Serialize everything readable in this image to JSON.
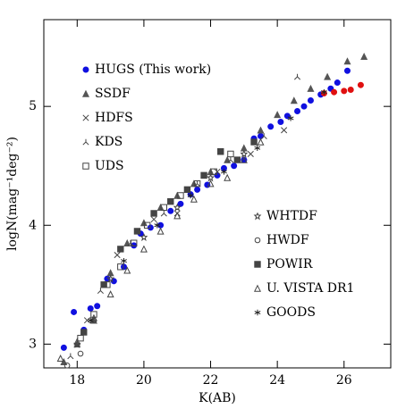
{
  "chart_data": {
    "type": "scatter",
    "x_label": "K(AB)",
    "y_label": "logN(mag⁻¹deg⁻²)",
    "xlim": [
      17,
      27.4
    ],
    "ylim": [
      2.8,
      5.73
    ],
    "xticks": [
      18,
      20,
      22,
      24,
      26
    ],
    "yticks": [
      3,
      4,
      5
    ],
    "series": [
      {
        "name": "HUGS (This work)",
        "color": "#1010e0",
        "marker": "circle",
        "x": [
          17.6,
          17.9,
          18.2,
          18.4,
          18.6,
          18.9,
          19.1,
          19.4,
          19.7,
          19.9,
          20.2,
          20.5,
          20.8,
          21.1,
          21.4,
          21.6,
          21.9,
          22.2,
          22.4,
          22.7,
          23.0,
          23.3,
          23.5,
          23.8,
          24.1,
          24.3,
          24.6,
          24.8,
          25.0,
          25.3,
          25.6,
          25.8,
          26.1
        ],
        "values": [
          2.97,
          3.27,
          3.12,
          3.3,
          3.32,
          3.55,
          3.53,
          3.65,
          3.83,
          3.93,
          3.98,
          4.0,
          4.12,
          4.18,
          4.26,
          4.3,
          4.34,
          4.42,
          4.48,
          4.5,
          4.55,
          4.73,
          4.75,
          4.83,
          4.87,
          4.92,
          4.96,
          5.0,
          5.05,
          5.1,
          5.15,
          5.2,
          5.3
        ]
      },
      {
        "color": "#e01010",
        "marker": "circle",
        "x": [
          25.4,
          25.7,
          26.0,
          26.2,
          26.5
        ],
        "values": [
          5.11,
          5.12,
          5.13,
          5.14,
          5.18
        ]
      },
      {
        "name": "SSDF",
        "color": "#555555",
        "marker": "triangle",
        "x": [
          17.6,
          18.0,
          18.5,
          19.0,
          19.5,
          20.0,
          20.5,
          21.0,
          21.5,
          22.0,
          22.5,
          23.0,
          23.5,
          24.0,
          24.5,
          25.0,
          25.5,
          26.1,
          26.6
        ],
        "values": [
          2.85,
          3.0,
          3.2,
          3.6,
          3.85,
          4.02,
          4.15,
          4.25,
          4.35,
          4.45,
          4.55,
          4.65,
          4.8,
          4.93,
          5.05,
          5.15,
          5.25,
          5.38,
          5.42
        ]
      },
      {
        "name": "HDFS",
        "color": "#444444",
        "marker": "cross",
        "x": [
          18.3,
          19.2,
          20.3,
          21.0,
          22.2,
          23.2,
          24.2
        ],
        "values": [
          3.2,
          3.75,
          4.05,
          4.1,
          4.45,
          4.6,
          4.8
        ]
      },
      {
        "name": "KDS",
        "color": "#444444",
        "marker": "tri",
        "x": [
          17.8,
          18.7,
          19.6,
          20.6,
          21.6,
          22.6,
          23.6,
          24.6
        ],
        "values": [
          2.9,
          3.45,
          3.85,
          4.1,
          4.35,
          4.55,
          4.75,
          5.25
        ]
      },
      {
        "name": "UDS",
        "color": "#444444",
        "marker": "square",
        "x": [
          18.1,
          18.5,
          18.9,
          19.3,
          19.7,
          20.1,
          20.6,
          21.1,
          21.6,
          22.1,
          22.6
        ],
        "values": [
          3.05,
          3.25,
          3.5,
          3.65,
          3.85,
          4.0,
          4.15,
          4.25,
          4.35,
          4.45,
          4.6
        ]
      },
      {
        "name": "WHTDF",
        "color": "#444444",
        "marker": "star",
        "x": [
          18.0,
          19.0,
          20.0,
          21.0,
          22.0,
          23.0
        ],
        "values": [
          3.0,
          3.55,
          3.9,
          4.15,
          4.4,
          4.6
        ]
      },
      {
        "name": "HWDF",
        "color": "#444444",
        "marker": "ocircle",
        "x": [
          17.7,
          18.1,
          18.5
        ],
        "values": [
          2.82,
          2.92,
          3.2
        ]
      },
      {
        "name": "POWIR",
        "color": "#444444",
        "marker": "fsquare",
        "x": [
          18.2,
          18.8,
          19.3,
          19.8,
          20.3,
          20.8,
          21.3,
          21.8,
          22.3,
          22.8,
          23.3
        ],
        "values": [
          3.1,
          3.5,
          3.8,
          3.95,
          4.1,
          4.2,
          4.3,
          4.42,
          4.62,
          4.55,
          4.7
        ]
      },
      {
        "name": "U. VISTA DR1",
        "color": "#444444",
        "marker": "otriangle",
        "x": [
          17.5,
          18.0,
          18.5,
          19.0,
          19.5,
          20.0,
          20.5,
          21.0,
          21.5,
          22.0,
          22.5,
          23.0,
          23.5
        ],
        "values": [
          2.88,
          3.02,
          3.22,
          3.42,
          3.62,
          3.8,
          3.95,
          4.08,
          4.22,
          4.35,
          4.4,
          4.55,
          4.7
        ]
      },
      {
        "name": "GOODS",
        "color": "#222222",
        "marker": "asterisk",
        "x": [
          18.4,
          19.4,
          20.4,
          21.4,
          22.4,
          23.4,
          24.4,
          25.4
        ],
        "values": [
          3.2,
          3.7,
          4.0,
          4.25,
          4.45,
          4.65,
          4.9,
          5.12
        ]
      }
    ]
  }
}
